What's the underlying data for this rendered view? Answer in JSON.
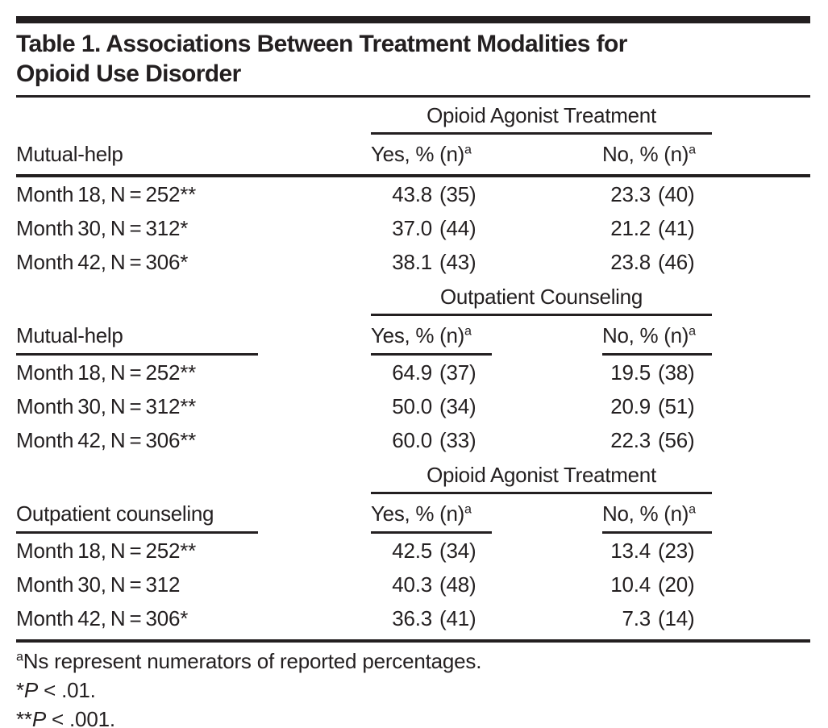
{
  "colors": {
    "text": "#231f20",
    "background": "#ffffff"
  },
  "title": {
    "line1": "Table 1. Associations Between Treatment Modalities for",
    "line2": "Opioid Use Disorder"
  },
  "sections": [
    {
      "spanner": "Opioid Agonist Treatment",
      "stub_header": "Mutual-help",
      "yes_header": "Yes, % (n)",
      "no_header": "No, % (n)",
      "header_sup": "a",
      "rows": [
        {
          "stub": "Month 18, N = 252",
          "sig": "**",
          "yes_pct": "43.8",
          "yes_n": "(35)",
          "no_pct": "23.3",
          "no_n": "(40)"
        },
        {
          "stub": "Month 30, N = 312",
          "sig": "*",
          "yes_pct": "37.0",
          "yes_n": "(44)",
          "no_pct": "21.2",
          "no_n": "(41)"
        },
        {
          "stub": "Month 42, N = 306",
          "sig": "*",
          "yes_pct": "38.1",
          "yes_n": "(43)",
          "no_pct": "23.8",
          "no_n": "(46)"
        }
      ]
    },
    {
      "spanner": "Outpatient Counseling",
      "stub_header": "Mutual-help",
      "yes_header": "Yes, % (n)",
      "no_header": "No, % (n)",
      "header_sup": "a",
      "rows": [
        {
          "stub": "Month 18, N = 252",
          "sig": "**",
          "yes_pct": "64.9",
          "yes_n": "(37)",
          "no_pct": "19.5",
          "no_n": "(38)"
        },
        {
          "stub": "Month 30, N = 312",
          "sig": "**",
          "yes_pct": "50.0",
          "yes_n": "(34)",
          "no_pct": "20.9",
          "no_n": "(51)"
        },
        {
          "stub": "Month 42, N = 306",
          "sig": "**",
          "yes_pct": "60.0",
          "yes_n": "(33)",
          "no_pct": "22.3",
          "no_n": "(56)"
        }
      ]
    },
    {
      "spanner": "Opioid Agonist Treatment",
      "stub_header": "Outpatient counseling",
      "yes_header": "Yes, % (n)",
      "no_header": "No, % (n)",
      "header_sup": "a",
      "rows": [
        {
          "stub": "Month 18, N = 252",
          "sig": "**",
          "yes_pct": "42.5",
          "yes_n": "(34)",
          "no_pct": "13.4",
          "no_n": "(23)"
        },
        {
          "stub": "Month 30, N = 312",
          "sig": "",
          "yes_pct": "40.3",
          "yes_n": "(48)",
          "no_pct": "10.4",
          "no_n": "(20)"
        },
        {
          "stub": "Month 42, N = 306",
          "sig": "*",
          "yes_pct": "36.3",
          "yes_n": "(41)",
          "no_pct": "7.3",
          "no_n": "(14)"
        }
      ]
    }
  ],
  "footnotes": [
    {
      "marker": "a",
      "text": "Ns represent numerators of reported percentages."
    },
    {
      "marker": "*",
      "p": "P",
      "text": " < .01."
    },
    {
      "marker": "**",
      "p": "P",
      "text": " < .001."
    }
  ]
}
